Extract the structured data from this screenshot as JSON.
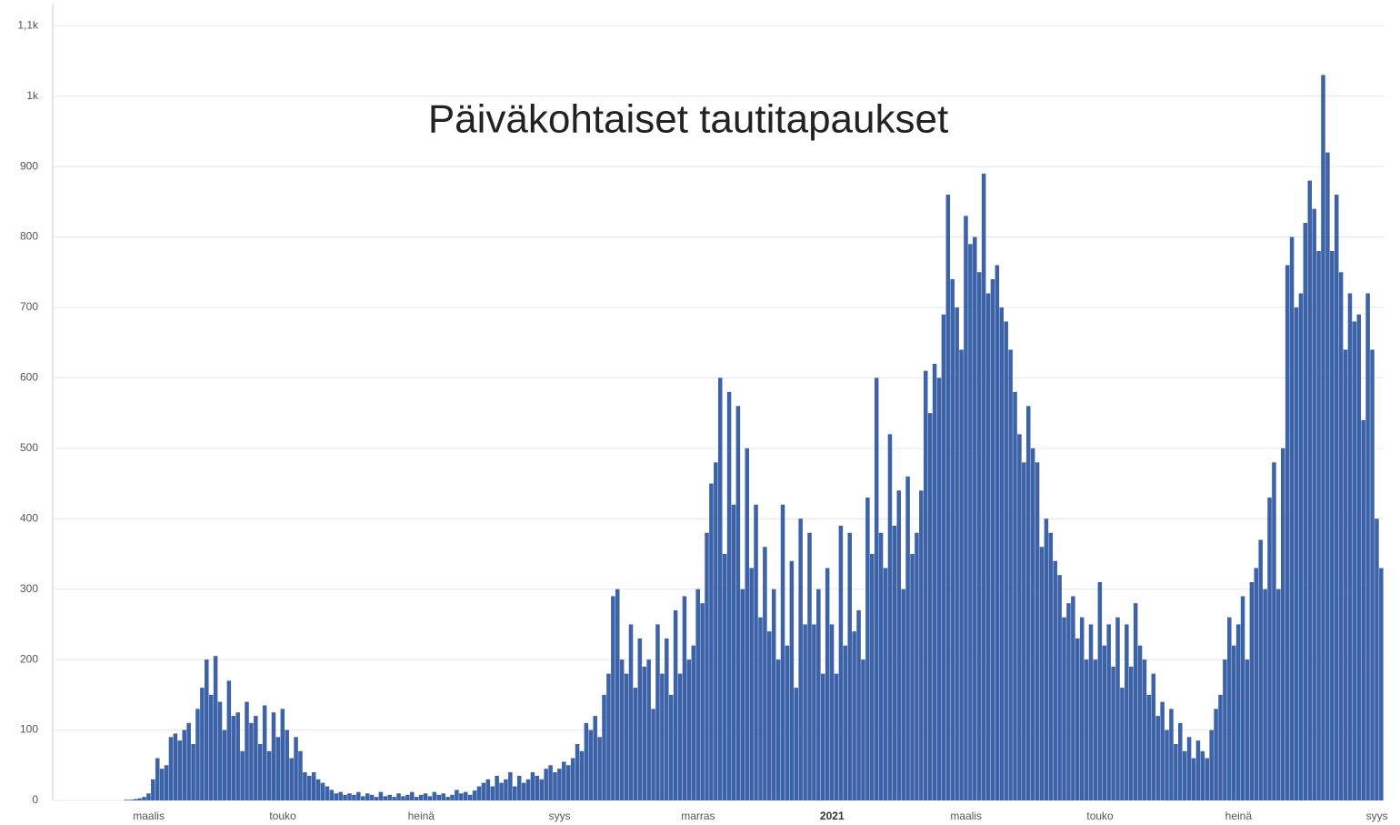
{
  "chart_data": {
    "type": "bar",
    "title": "Päiväkohtaiset tautitapaukset",
    "color": "#3c62a8",
    "grid": true,
    "ylim": [
      0,
      1130
    ],
    "yticks": [
      0,
      100,
      200,
      300,
      400,
      500,
      600,
      700,
      800,
      900,
      {
        "value": 1000,
        "label": "1k"
      },
      {
        "value": 1100,
        "label": "1,1k"
      }
    ],
    "categories": [
      null,
      null,
      null,
      null,
      null,
      null,
      null,
      null,
      null,
      null,
      null,
      null,
      null,
      null,
      null,
      null,
      null,
      null,
      null,
      null,
      null,
      "maalis",
      null,
      null,
      null,
      null,
      null,
      null,
      null,
      null,
      null,
      null,
      null,
      null,
      null,
      null,
      null,
      null,
      null,
      null,
      null,
      null,
      null,
      null,
      null,
      null,
      null,
      null,
      null,
      null,
      null,
      "touko",
      null,
      null,
      null,
      null,
      null,
      null,
      null,
      null,
      null,
      null,
      null,
      null,
      null,
      null,
      null,
      null,
      null,
      null,
      null,
      null,
      null,
      null,
      null,
      null,
      null,
      null,
      null,
      null,
      null,
      null,
      "heinä",
      null,
      null,
      null,
      null,
      null,
      null,
      null,
      null,
      null,
      null,
      null,
      null,
      null,
      null,
      null,
      null,
      null,
      null,
      null,
      null,
      null,
      null,
      null,
      null,
      null,
      null,
      null,
      null,
      null,
      null,
      "syys",
      null,
      null,
      null,
      null,
      null,
      null,
      null,
      null,
      null,
      null,
      null,
      null,
      null,
      null,
      null,
      null,
      null,
      null,
      null,
      null,
      null,
      null,
      null,
      null,
      null,
      null,
      null,
      null,
      null,
      null,
      "marras",
      null,
      null,
      null,
      null,
      null,
      null,
      null,
      null,
      null,
      null,
      null,
      null,
      null,
      null,
      null,
      null,
      null,
      null,
      null,
      null,
      null,
      null,
      null,
      null,
      null,
      null,
      null,
      null,
      null,
      "2021",
      null,
      null,
      null,
      null,
      null,
      null,
      null,
      null,
      null,
      null,
      null,
      null,
      null,
      null,
      null,
      null,
      null,
      null,
      null,
      null,
      null,
      null,
      null,
      null,
      null,
      null,
      null,
      null,
      null,
      "maalis",
      null,
      null,
      null,
      null,
      null,
      null,
      null,
      null,
      null,
      null,
      null,
      null,
      null,
      null,
      null,
      null,
      null,
      null,
      null,
      null,
      null,
      null,
      null,
      null,
      null,
      null,
      null,
      null,
      null,
      "touko",
      null,
      null,
      null,
      null,
      null,
      null,
      null,
      null,
      null,
      null,
      null,
      null,
      null,
      null,
      null,
      null,
      null,
      null,
      null,
      null,
      null,
      null,
      null,
      null,
      null,
      null,
      null,
      null,
      null,
      null,
      "heinä",
      null,
      null,
      null,
      null,
      null,
      null,
      null,
      null,
      null,
      null,
      null,
      null,
      null,
      null,
      null,
      null,
      null,
      null,
      null,
      null,
      null,
      null,
      null,
      null,
      null,
      null,
      null,
      null,
      null,
      null,
      "syys",
      null
    ],
    "values": [
      0,
      0,
      0,
      0,
      0,
      0,
      0,
      0,
      0,
      0,
      0,
      0,
      0,
      0,
      0,
      0,
      1,
      1,
      2,
      3,
      5,
      10,
      30,
      60,
      45,
      50,
      90,
      95,
      85,
      100,
      110,
      80,
      130,
      160,
      200,
      150,
      205,
      140,
      100,
      170,
      120,
      125,
      70,
      140,
      110,
      120,
      80,
      135,
      70,
      125,
      90,
      130,
      100,
      60,
      90,
      70,
      40,
      35,
      40,
      30,
      25,
      20,
      15,
      10,
      12,
      8,
      10,
      8,
      12,
      6,
      10,
      8,
      5,
      12,
      6,
      8,
      5,
      10,
      6,
      8,
      12,
      5,
      8,
      10,
      6,
      12,
      8,
      10,
      5,
      8,
      15,
      10,
      12,
      8,
      14,
      20,
      25,
      30,
      20,
      35,
      25,
      30,
      40,
      20,
      35,
      25,
      30,
      40,
      35,
      30,
      45,
      50,
      40,
      45,
      55,
      50,
      60,
      80,
      70,
      110,
      100,
      120,
      90,
      150,
      180,
      290,
      300,
      200,
      180,
      250,
      160,
      230,
      190,
      200,
      130,
      250,
      180,
      230,
      150,
      270,
      180,
      290,
      200,
      220,
      300,
      280,
      380,
      450,
      480,
      600,
      350,
      580,
      420,
      560,
      300,
      500,
      330,
      420,
      260,
      360,
      240,
      300,
      200,
      420,
      220,
      340,
      160,
      400,
      250,
      380,
      250,
      300,
      180,
      330,
      250,
      180,
      390,
      220,
      380,
      240,
      270,
      200,
      430,
      350,
      600,
      380,
      330,
      520,
      390,
      440,
      300,
      460,
      350,
      380,
      440,
      610,
      550,
      620,
      600,
      690,
      860,
      740,
      700,
      640,
      830,
      790,
      800,
      750,
      890,
      720,
      740,
      760,
      700,
      680,
      640,
      580,
      520,
      480,
      560,
      500,
      480,
      360,
      400,
      380,
      340,
      320,
      260,
      280,
      290,
      230,
      260,
      200,
      250,
      200,
      310,
      220,
      250,
      190,
      260,
      160,
      250,
      190,
      280,
      220,
      200,
      150,
      180,
      120,
      140,
      100,
      130,
      80,
      110,
      70,
      90,
      60,
      85,
      70,
      60,
      100,
      130,
      150,
      200,
      260,
      220,
      250,
      290,
      200,
      310,
      330,
      370,
      300,
      430,
      480,
      300,
      500,
      760,
      800,
      700,
      720,
      820,
      880,
      840,
      780,
      1030,
      920,
      780,
      860,
      750,
      640,
      720,
      680,
      690,
      540,
      720,
      640,
      400,
      330
    ]
  }
}
